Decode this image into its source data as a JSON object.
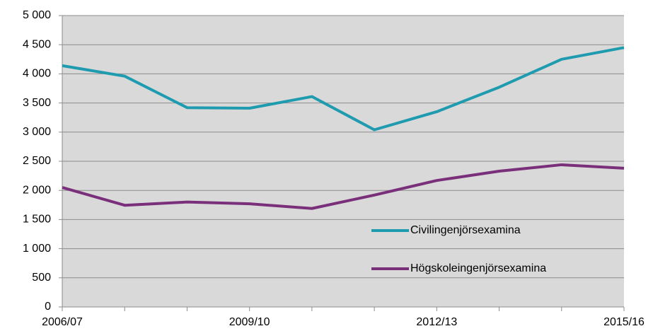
{
  "chart_data": {
    "type": "line",
    "categories": [
      "2006/07",
      null,
      null,
      "2009/10",
      null,
      null,
      "2012/13",
      null,
      null,
      "2015/16"
    ],
    "series": [
      {
        "name": "Civilingenjörsexamina",
        "color": "#1f9bb0",
        "values": [
          4140,
          3960,
          3420,
          3410,
          3610,
          3040,
          3350,
          3770,
          4250,
          4450
        ]
      },
      {
        "name": "Högskoleingenjörsexamina",
        "color": "#7a2f7a",
        "values": [
          2050,
          1745,
          1800,
          1770,
          1690,
          1920,
          2170,
          2330,
          2440,
          2380
        ]
      }
    ],
    "ylim": [
      0,
      5000
    ],
    "yticks": [
      0,
      500,
      {
        "value": 1000,
        "label": "1 000"
      },
      {
        "value": 1500,
        "label": "1 500"
      },
      {
        "value": 2000,
        "label": "2 000"
      },
      {
        "value": 2500,
        "label": "2 500"
      },
      {
        "value": 3000,
        "label": "3 000"
      },
      {
        "value": 3500,
        "label": "3 500"
      },
      {
        "value": 4000,
        "label": "4 000"
      },
      {
        "value": 4500,
        "label": "4 500"
      },
      {
        "value": 5000,
        "label": "5 000"
      }
    ],
    "grid": true,
    "legend": "lower right"
  }
}
